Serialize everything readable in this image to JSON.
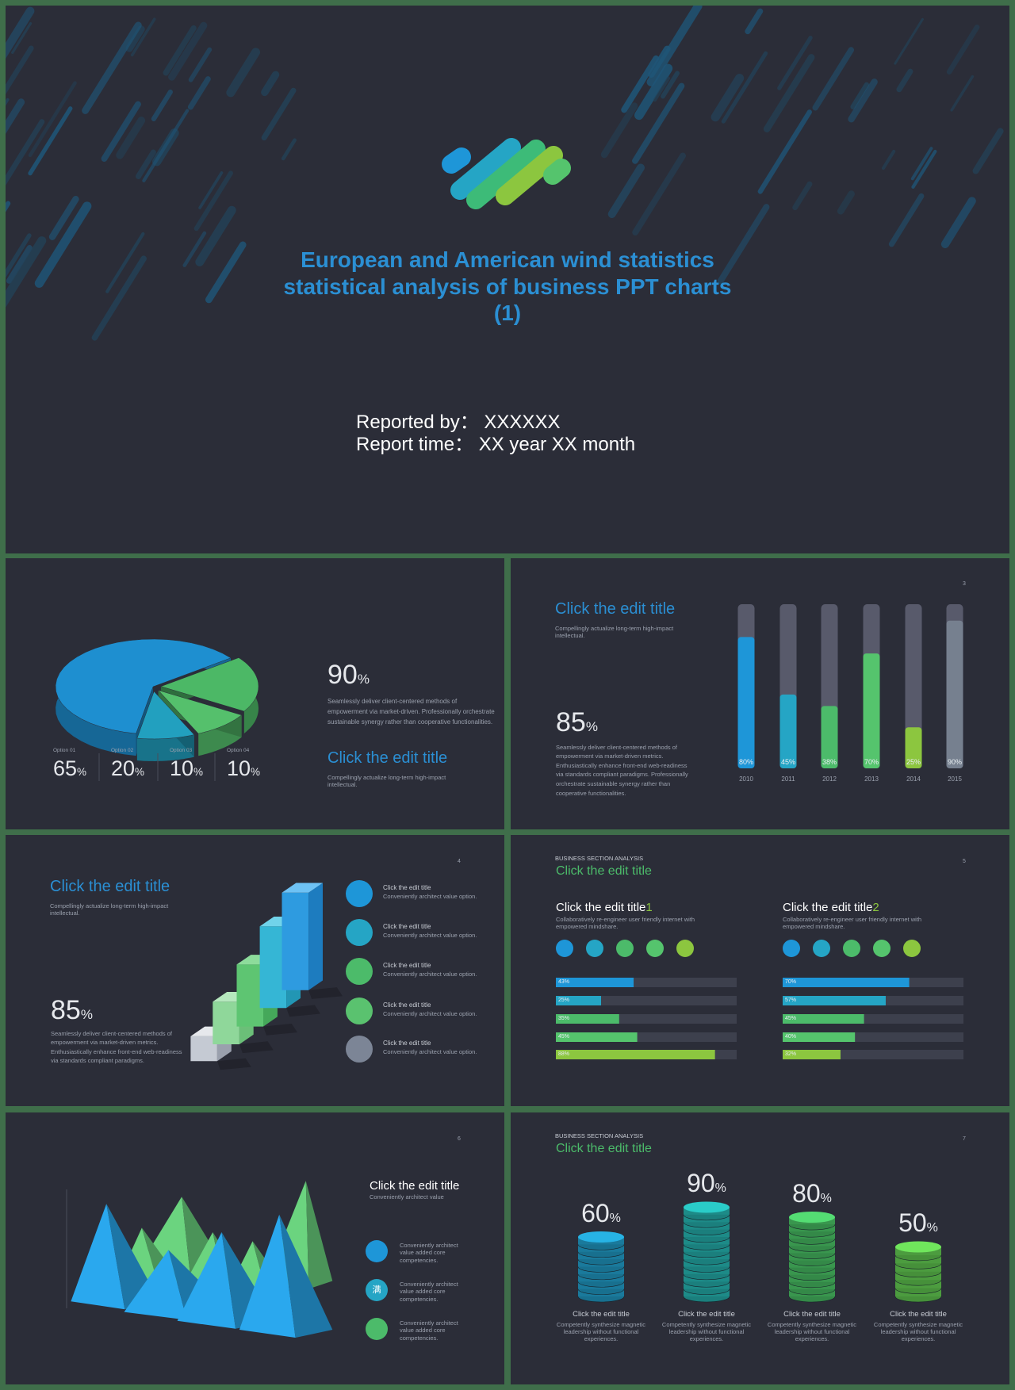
{
  "cover": {
    "title_lines": [
      "European and American wind statistics",
      "statistical analysis of business PPT charts",
      "(1)"
    ],
    "reported_by": "Reported by：  XXXXXX",
    "report_time": "Report time：  XX year XX month"
  },
  "slide_pie": {
    "options": [
      {
        "label": "Option 01",
        "value": 65
      },
      {
        "label": "Option 02",
        "value": 20
      },
      {
        "label": "Option 03",
        "value": 10
      },
      {
        "label": "Option 04",
        "value": 10
      }
    ],
    "colors": [
      "#1e8fd0",
      "#4cb866",
      "#55c06c",
      "#22a0bf"
    ],
    "unit": "%",
    "stat": 90,
    "text": "Seamlessly deliver client-centered methods of empowerment via market-driven. Professionally orchestrate sustainable synergy rather than cooperative functionalities.",
    "title": "Click the edit title",
    "subtitle": "Compellingly actualize long-term high-impact intellectual."
  },
  "slide_bars": {
    "page": 3,
    "title": "Click the edit title",
    "subtitle": "Compellingly actualize long-term high-impact intellectual.",
    "stat": 85,
    "unit": "%",
    "text": "Seamlessly deliver client-centered methods of empowerment via market-driven metrics. Enthusiastically enhance front-end web-readiness via standards compliant paradigms. Professionally orchestrate sustainable synergy rather than cooperative functionalities.",
    "chart": {
      "type": "bar",
      "categories": [
        "2010",
        "2011",
        "2012",
        "2013",
        "2014",
        "2015"
      ],
      "values": [
        80,
        45,
        38,
        70,
        25,
        90
      ],
      "value_labels": [
        "80%",
        "45%",
        "38%",
        "70%",
        "25%",
        "90%"
      ],
      "colors": [
        "#1e96d8",
        "#25a5c5",
        "#4cbb6a",
        "#55c46d",
        "#8cc63f",
        "#76808f"
      ],
      "ylim": [
        0,
        100
      ]
    }
  },
  "slide_cubes": {
    "page": 4,
    "title": "Click the edit title",
    "subtitle": "Compellingly actualize long-term high-impact intellectual.",
    "stat": 85,
    "unit": "%",
    "text": "Seamlessly deliver client-centered methods of empowerment via market-driven metrics. Enthusiastically enhance front-end web-readiness via standards compliant paradigms.",
    "items": [
      {
        "title": "Click the edit title",
        "text": "Conveniently architect value option."
      },
      {
        "title": "Click the edit title",
        "text": "Conveniently architect value option."
      },
      {
        "title": "Click the edit title",
        "text": "Conveniently architect value option."
      },
      {
        "title": "Click the edit title",
        "text": "Conveniently architect value option."
      },
      {
        "title": "Click the edit title",
        "text": "Conveniently architect value option."
      }
    ],
    "colors": [
      "#1e96d8",
      "#25a5c5",
      "#4cbb6a",
      "#5ac26f",
      "#7c8596"
    ]
  },
  "slide_progress": {
    "section": "BUSINESS SECTION ANALYSIS",
    "title": "Click the edit title",
    "page": 5,
    "colors": [
      "#1e96d8",
      "#25a5c5",
      "#4cbb6a",
      "#55c46d",
      "#8cc63f"
    ],
    "xlim": [
      0,
      100
    ],
    "groups": [
      {
        "title": "Click the edit title",
        "index": 1,
        "subtitle": "Collaboratively re-engineer user friendly internet with empowered mindshare.",
        "values": [
          43,
          25,
          35,
          45,
          88
        ],
        "value_labels": [
          "43%",
          "25%",
          "35%",
          "45%",
          "88%"
        ]
      },
      {
        "title": "Click the edit title",
        "index": 2,
        "subtitle": "Collaboratively re-engineer user friendly internet with empowered mindshare.",
        "values": [
          70,
          57,
          45,
          40,
          32
        ],
        "value_labels": [
          "70%",
          "57%",
          "45%",
          "40%",
          "32%"
        ]
      }
    ]
  },
  "slide_peaks": {
    "page": 6,
    "title": "Click the edit title",
    "subtitle": "Conveniently architect value",
    "items": [
      {
        "text": "Conveniently architect value added core competencies."
      },
      {
        "text": "Conveniently architect value added core competencies.",
        "icon": "满"
      },
      {
        "text": "Conveniently architect value added core competencies."
      }
    ],
    "colors": [
      "#1e96d8",
      "#25a5c5",
      "#4cbb6a"
    ]
  },
  "slide_coins": {
    "section": "BUSINESS SECTION ANALYSIS",
    "title": "Click the edit title",
    "page": 7,
    "unit": "%",
    "colors": [
      "#1f8fb7",
      "#22a3a0",
      "#43b05c",
      "#5ab84a"
    ],
    "stacks": [
      {
        "value": 60,
        "title": "Click the edit title",
        "text": "Competently synthesize magnetic leadership without functional experiences."
      },
      {
        "value": 90,
        "title": "Click the edit title",
        "text": "Competently synthesize magnetic leadership without functional experiences."
      },
      {
        "value": 80,
        "title": "Click the edit title",
        "text": "Competently synthesize magnetic leadership without functional experiences."
      },
      {
        "value": 50,
        "title": "Click the edit title",
        "text": "Competently synthesize magnetic leadership without functional experiences."
      }
    ]
  }
}
